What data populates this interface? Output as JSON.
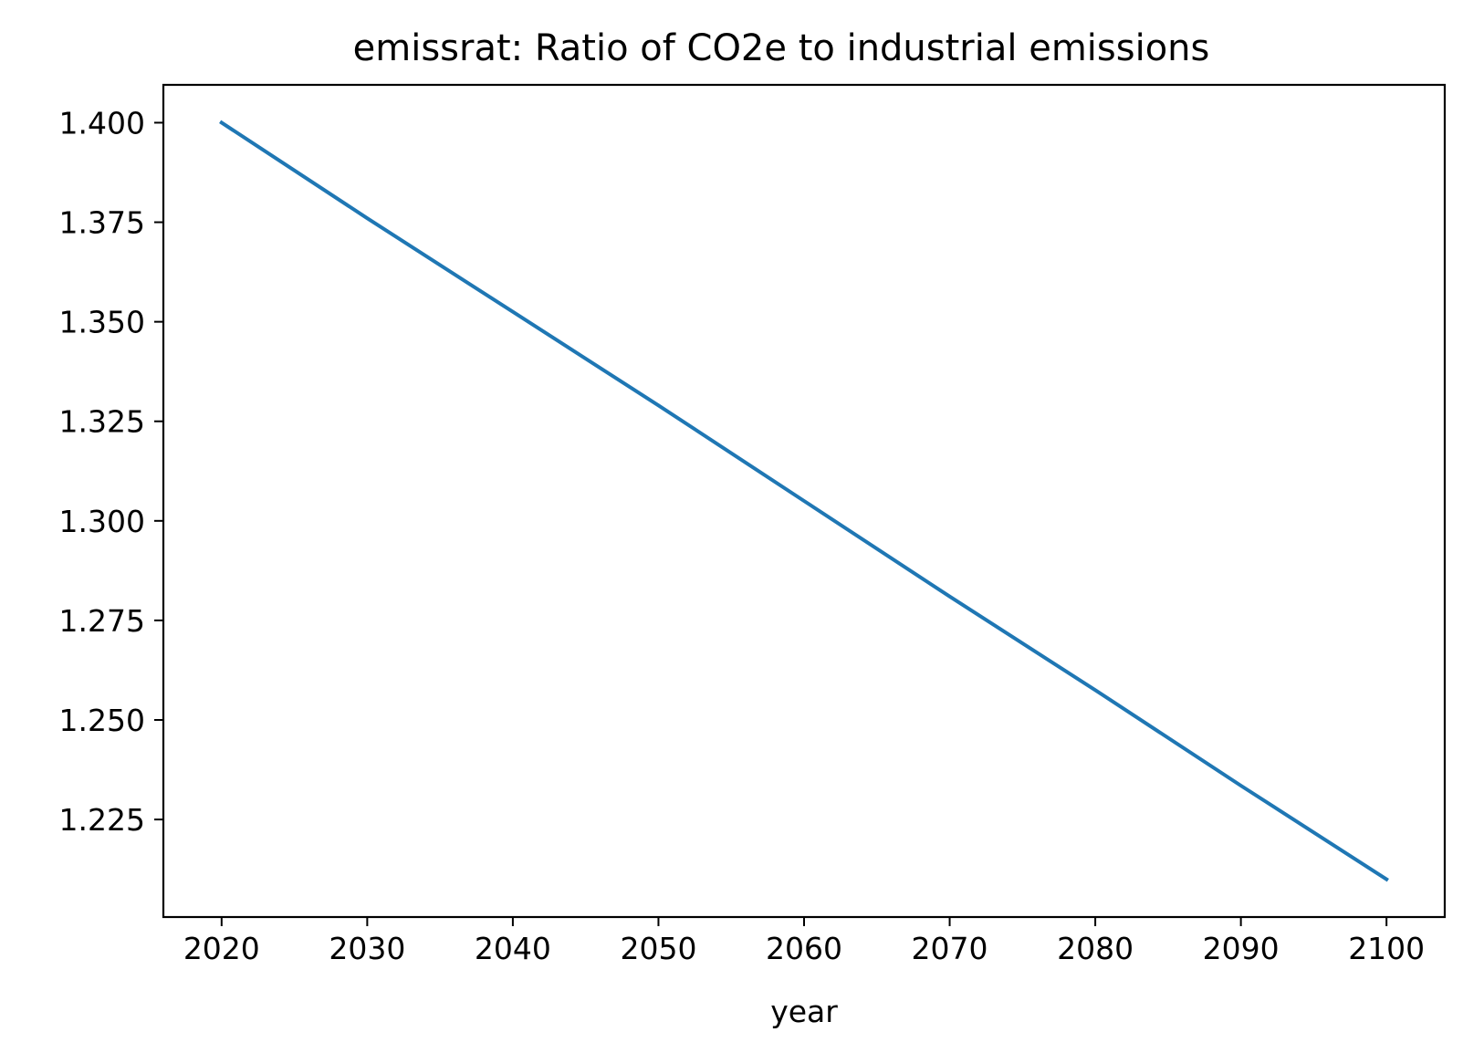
{
  "chart_data": {
    "type": "line",
    "title": "emissrat: Ratio of CO2e to industrial emissions",
    "xlabel": "year",
    "ylabel": "",
    "x_ticks": [
      2020,
      2030,
      2040,
      2050,
      2060,
      2070,
      2080,
      2090,
      2100
    ],
    "x_tick_labels": [
      "2020",
      "2030",
      "2040",
      "2050",
      "2060",
      "2070",
      "2080",
      "2090",
      "2100"
    ],
    "y_ticks": [
      1.225,
      1.25,
      1.275,
      1.3,
      1.325,
      1.35,
      1.375,
      1.4
    ],
    "y_tick_labels": [
      "1.225",
      "1.250",
      "1.275",
      "1.300",
      "1.325",
      "1.350",
      "1.375",
      "1.400"
    ],
    "xlim": [
      2016,
      2104
    ],
    "ylim": [
      1.2005,
      1.4095
    ],
    "grid": false,
    "legend": "none",
    "series": [
      {
        "color": "#1f77b4",
        "x": [
          2020,
          2030,
          2040,
          2050,
          2060,
          2070,
          2080,
          2090,
          2100
        ],
        "y": [
          1.4,
          1.376,
          1.3525,
          1.329,
          1.305,
          1.281,
          1.2575,
          1.2335,
          1.21
        ]
      }
    ]
  }
}
